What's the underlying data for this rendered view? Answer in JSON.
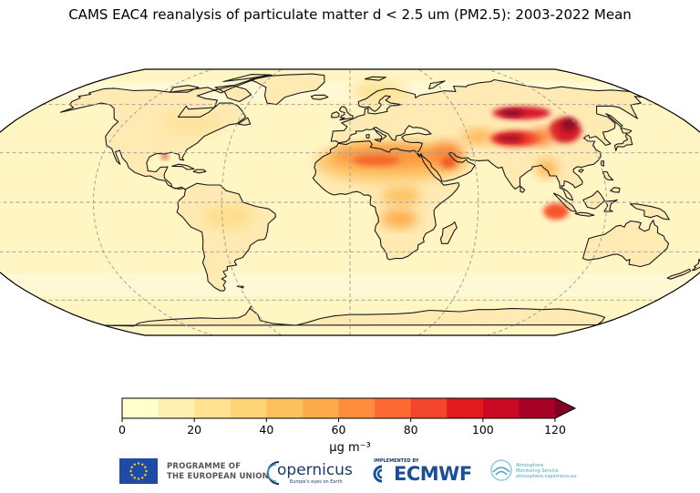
{
  "title": "CAMS EAC4 reanalysis of particulate matter d < 2.5 um (PM2.5): 2003-2022 Mean",
  "colorbar": {
    "ticks": [
      "0",
      "20",
      "40",
      "60",
      "80",
      "100",
      "120"
    ],
    "tick_values": [
      0,
      20,
      40,
      60,
      80,
      100,
      120
    ],
    "min": 0,
    "max": 120,
    "step": 10,
    "extend": "max",
    "unit_label": "μg m⁻³",
    "colors": [
      "#ffffcc",
      "#fff0b0",
      "#fee290",
      "#fed576",
      "#fdc05e",
      "#fdab4b",
      "#fd8d3c",
      "#fc6a32",
      "#f3472b",
      "#e31a1c",
      "#c90823",
      "#a50026"
    ],
    "extend_color": "#800026"
  },
  "map": {
    "projection": "Robinson",
    "background_color": "#fff6c4",
    "coastline_color": "#1a1a1a",
    "gridline_style": "dashed",
    "high_regions": [
      "Sahara",
      "Arabian Peninsula",
      "Indo-Gangetic Plain",
      "Taklimakan",
      "Eastern China"
    ]
  },
  "logos": {
    "eu_line1": "PROGRAMME OF",
    "eu_line2": "THE EUROPEAN UNION",
    "copernicus": "opernicus",
    "copernicus_tagline": "Europe's eyes on Earth",
    "ecmwf_implemented": "IMPLEMENTED BY",
    "ecmwf": "ECMWF",
    "cams_line1": "Atmosphere",
    "cams_line2": "Monitoring Service",
    "cams_line3": "atmosphere.copernicus.eu"
  }
}
